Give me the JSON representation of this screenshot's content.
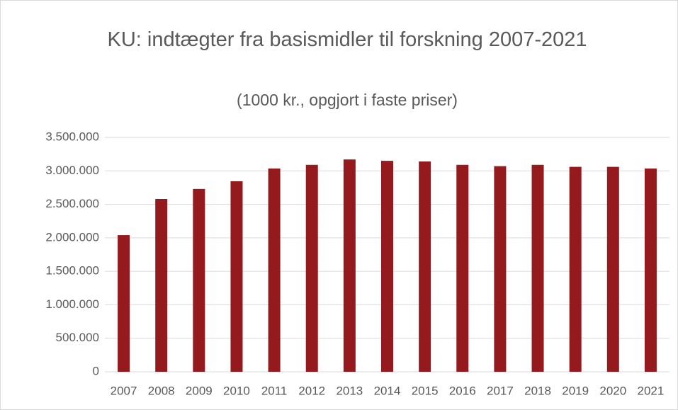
{
  "chart_data": {
    "type": "bar",
    "title": "KU: indtægter fra basismidler til forskning 2007-2021",
    "subtitle": "(1000 kr., opgjort i faste priser)",
    "categories": [
      "2007",
      "2008",
      "2009",
      "2010",
      "2011",
      "2012",
      "2013",
      "2014",
      "2015",
      "2016",
      "2017",
      "2018",
      "2019",
      "2020",
      "2021"
    ],
    "values": [
      2040000,
      2580000,
      2730000,
      2845000,
      3035000,
      3090000,
      3170000,
      3150000,
      3140000,
      3090000,
      3070000,
      3090000,
      3060000,
      3060000,
      3035000
    ],
    "color": "#951a1e",
    "ylim": [
      0,
      3500000
    ],
    "yticks": [
      0,
      {
        "value": 500000,
        "label": "500.000"
      },
      {
        "value": 1000000,
        "label": "1.000.000"
      },
      {
        "value": 1500000,
        "label": "1.500.000"
      },
      {
        "value": 2000000,
        "label": "2.000.000"
      },
      {
        "value": 2500000,
        "label": "2.500.000"
      },
      {
        "value": 3000000,
        "label": "3.000.000"
      },
      {
        "value": 3500000,
        "label": "3.500.000"
      }
    ],
    "grid": true
  }
}
